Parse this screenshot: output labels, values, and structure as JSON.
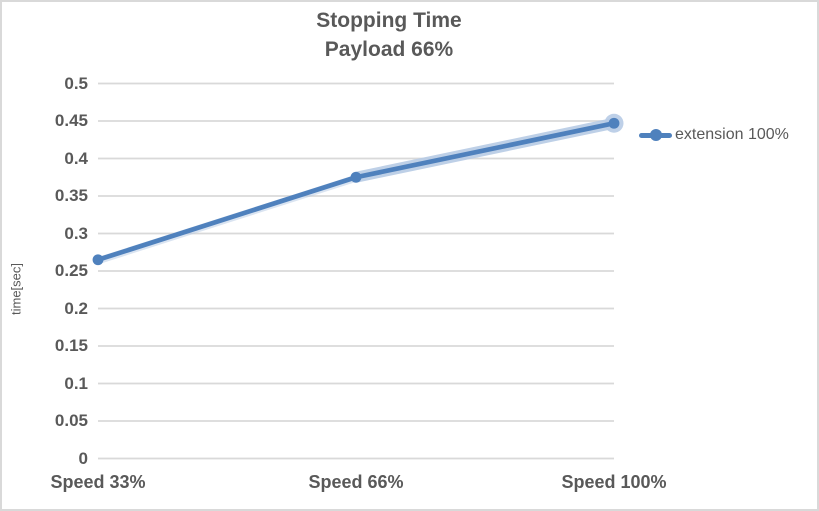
{
  "chart_data": {
    "type": "line",
    "title_line1": "Stopping Time",
    "title_line2": "Payload 66%",
    "ylabel": "time[sec]",
    "xlabel": "",
    "categories": [
      "Speed 33%",
      "Speed 66%",
      "Speed 100%"
    ],
    "series": [
      {
        "name": "extension 100%",
        "values": [
          0.265,
          0.375,
          0.447
        ]
      }
    ],
    "ylim": [
      0,
      0.5
    ],
    "ytick_values": [
      0,
      0.05,
      0.1,
      0.15,
      0.2,
      0.25,
      0.3,
      0.35,
      0.4,
      0.45,
      0.5
    ],
    "ytick_labels": [
      "0",
      "0.05",
      "0.1",
      "0.15",
      "0.2",
      "0.25",
      "0.3",
      "0.35",
      "0.4",
      "0.45",
      "0.5"
    ],
    "grid": true,
    "legend_position": "right"
  },
  "colors": {
    "series_line": "#4f81bd",
    "series_glow": "#b7cbe5",
    "gridline": "#d9d9d9",
    "text": "#595959",
    "frame_border": "#d9d9d9",
    "background": "#ffffff"
  }
}
